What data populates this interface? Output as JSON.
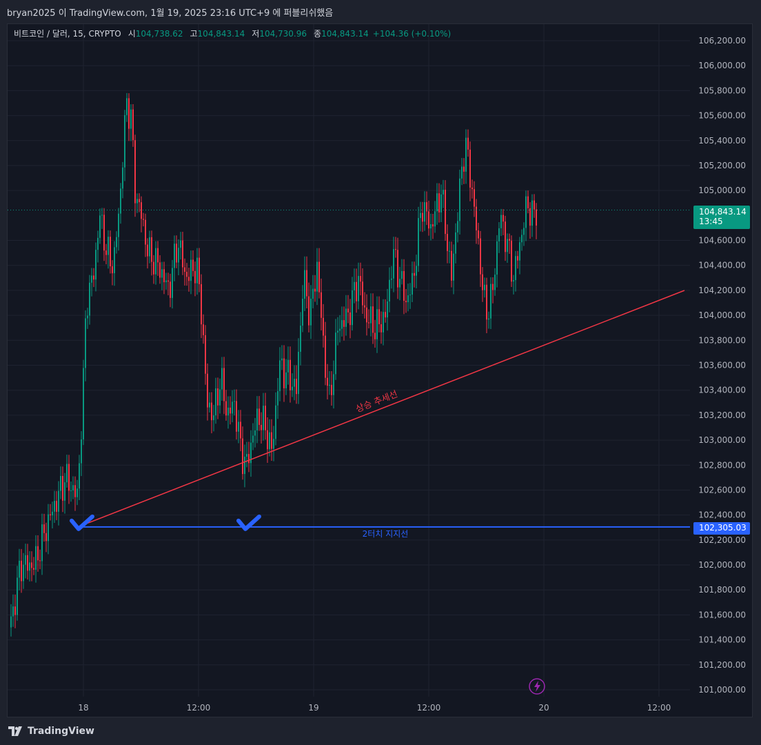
{
  "header": {
    "text": "bryan2025 이 TradingView.com, 1월 19, 2025 23:16 UTC+9 에 퍼블리쉬했음"
  },
  "legend": {
    "symbol": "비트코인 / 달러, 15, CRYPTO",
    "open_label": "시",
    "open": "104,738.62",
    "high_label": "고",
    "high": "104,843.14",
    "low_label": "저",
    "low": "104,730.96",
    "close_label": "종",
    "close": "104,843.14",
    "change": "+104.36 (+0.10%)"
  },
  "price_axis": {
    "ticks": [
      "106,200.00",
      "106,000.00",
      "105,800.00",
      "105,600.00",
      "105,400.00",
      "105,200.00",
      "105,000.00",
      "104,600.00",
      "104,400.00",
      "104,200.00",
      "104,000.00",
      "103,800.00",
      "103,600.00",
      "103,400.00",
      "103,200.00",
      "103,000.00",
      "102,800.00",
      "102,600.00",
      "102,400.00",
      "102,200.00",
      "102,000.00",
      "101,800.00",
      "101,600.00",
      "101,400.00",
      "101,200.00",
      "101,000.00"
    ]
  },
  "time_axis": {
    "ticks": [
      "18",
      "12:00",
      "19",
      "12:00",
      "20",
      "12:00"
    ]
  },
  "current_price": {
    "price": "104,843.14",
    "countdown": "13:45",
    "color": "#089981"
  },
  "support_line": {
    "price_label": "102,305.03",
    "label": "2터치 지지선",
    "color": "#2962ff"
  },
  "trend_line": {
    "label": "상승 추세선",
    "color": "#f23645"
  },
  "footer": {
    "logo": "TradingView"
  },
  "colors": {
    "up": "#089981",
    "down": "#f23645"
  }
}
